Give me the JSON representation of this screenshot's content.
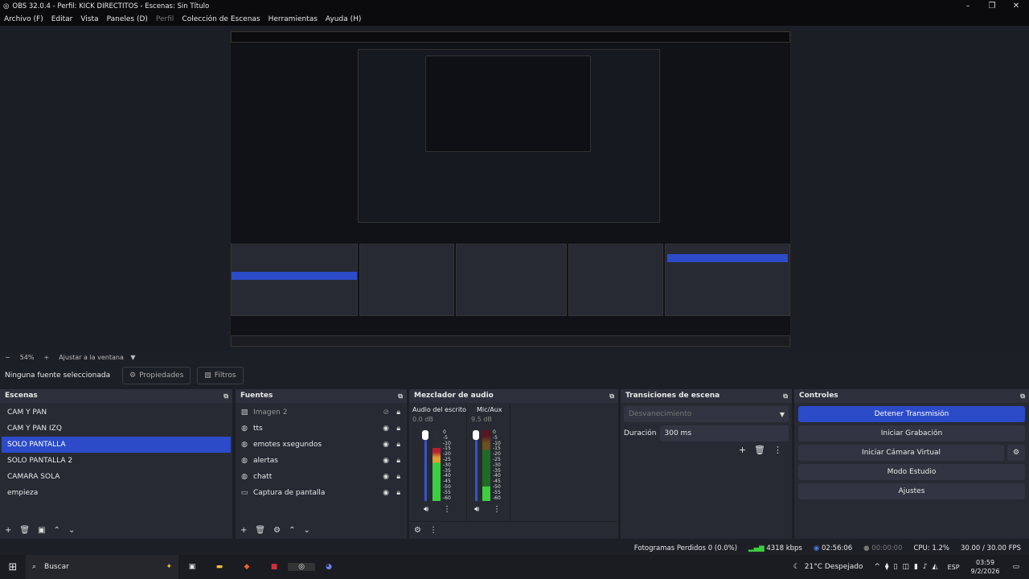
{
  "window": {
    "title": "OBS 32.0.4 - Perfil: KICK DIRECTITOS - Escenas: Sin Título",
    "minimize": "–",
    "maximize": "❐",
    "close": "✕"
  },
  "menu": [
    "Archivo (F)",
    "Editar",
    "Vista",
    "Paneles (D)",
    "Perfil",
    "Colección de Escenas",
    "Herramientas",
    "Ayuda (H)"
  ],
  "zoombar": {
    "minus": "−",
    "zoom": "54%",
    "plus": "+",
    "fit": "Ajustar a la ventana"
  },
  "source_toolbar": {
    "status": "Ninguna fuente seleccionada",
    "properties": "Propiedades",
    "filters": "Filtros"
  },
  "scenes": {
    "title": "Escenas",
    "items": [
      "CAM Y PAN",
      "CAM Y PAN IZQ",
      "SOLO PANTALLA",
      "SOLO PANTALLA 2",
      "CAMARA SOLA",
      "empieza"
    ],
    "selected": "SOLO PANTALLA"
  },
  "sources": {
    "title": "Fuentes",
    "items": [
      {
        "name": "Imagen 2",
        "icon": "image-icon",
        "visible": false
      },
      {
        "name": "tts",
        "icon": "browser-icon",
        "visible": true
      },
      {
        "name": "emotes xsegundos",
        "icon": "browser-icon",
        "visible": true
      },
      {
        "name": "alertas",
        "icon": "browser-icon",
        "visible": true
      },
      {
        "name": "chatt",
        "icon": "browser-icon",
        "visible": true
      },
      {
        "name": "Captura de pantalla",
        "icon": "monitor-icon",
        "visible": true
      }
    ]
  },
  "mixer": {
    "title": "Mezclador de audio",
    "channels": [
      {
        "name": "Audio del escritorio",
        "db": "0.0 dB",
        "level": 0.75
      },
      {
        "name": "Mic/Aux",
        "db": "9.5 dB",
        "level": 0.2
      }
    ],
    "scale": [
      "0",
      "-5",
      "-10",
      "-15",
      "-20",
      "-25",
      "-30",
      "-35",
      "-40",
      "-45",
      "-50",
      "-55",
      "-60"
    ]
  },
  "transitions": {
    "title": "Transiciones de escena",
    "transition": "Desvanecimiento",
    "duration_label": "Duración",
    "duration": "300 ms"
  },
  "controls": {
    "title": "Controles",
    "buttons": [
      "Detener Transmisión",
      "Iniciar Grabación",
      "Iniciar Cámara Virtual",
      "Modo Estudio",
      "Ajustes"
    ],
    "accent": "#2c4bc9"
  },
  "status": {
    "dropped": "Fotogramas Perdidos 0 (0.0%)",
    "bitrate": "4318 kbps",
    "stream_time": "02:56:06",
    "rec_time": "00:00:00",
    "cpu": "CPU: 1.2%",
    "fps": "30.00 / 30.00 FPS"
  },
  "taskbar": {
    "search": "Buscar",
    "weather": "21°C  Despejado",
    "lang": "ESP",
    "time": "03:59",
    "date": "9/2/2026"
  }
}
